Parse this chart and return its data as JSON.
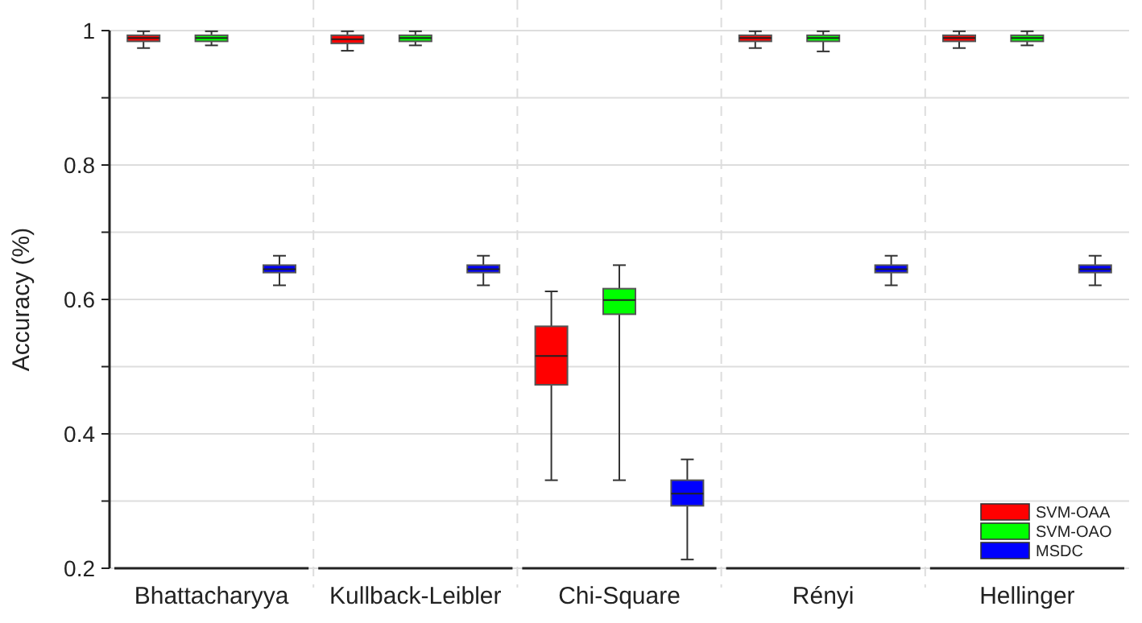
{
  "chart_data": {
    "type": "box",
    "ylabel": "Accuracy (%)",
    "categories": [
      "Bhattacharyya",
      "Kullback-Leibler",
      "Chi-Square",
      "Rényi",
      "Hellinger"
    ],
    "ylim": [
      0.2,
      1
    ],
    "yticks": [
      0.2,
      {
        "value": 0.3,
        "label": null
      },
      0.4,
      {
        "value": 0.5,
        "label": null
      },
      0.6,
      {
        "value": 0.7,
        "label": null
      },
      0.8,
      {
        "value": 0.9,
        "label": null
      },
      1
    ],
    "grid": "y",
    "legend": "bottom right",
    "series": [
      {
        "name": "SVM-OAA",
        "color": "#ff0000",
        "boxes": [
          {
            "low": 0.974,
            "q1": 0.984,
            "median": 0.989,
            "q3": 0.993,
            "high": 0.999
          },
          {
            "low": 0.97,
            "q1": 0.981,
            "median": 0.987,
            "q3": 0.993,
            "high": 0.999
          },
          {
            "low": 0.331,
            "q1": 0.473,
            "median": 0.516,
            "q3": 0.56,
            "high": 0.612
          },
          {
            "low": 0.974,
            "q1": 0.984,
            "median": 0.989,
            "q3": 0.993,
            "high": 0.999
          },
          {
            "low": 0.974,
            "q1": 0.984,
            "median": 0.989,
            "q3": 0.993,
            "high": 0.999
          }
        ]
      },
      {
        "name": "SVM-OAO",
        "color": "#00ff00",
        "boxes": [
          {
            "low": 0.978,
            "q1": 0.984,
            "median": 0.989,
            "q3": 0.993,
            "high": 0.999
          },
          {
            "low": 0.978,
            "q1": 0.984,
            "median": 0.989,
            "q3": 0.993,
            "high": 0.999
          },
          {
            "low": 0.331,
            "q1": 0.578,
            "median": 0.599,
            "q3": 0.616,
            "high": 0.651
          },
          {
            "low": 0.969,
            "q1": 0.984,
            "median": 0.989,
            "q3": 0.993,
            "high": 0.999
          },
          {
            "low": 0.978,
            "q1": 0.984,
            "median": 0.989,
            "q3": 0.993,
            "high": 0.999
          }
        ]
      },
      {
        "name": "MSDC",
        "color": "#0000ff",
        "boxes": [
          {
            "low": 0.621,
            "q1": 0.64,
            "median": 0.645,
            "q3": 0.651,
            "high": 0.665
          },
          {
            "low": 0.621,
            "q1": 0.64,
            "median": 0.645,
            "q3": 0.651,
            "high": 0.665
          },
          {
            "low": 0.213,
            "q1": 0.293,
            "median": 0.311,
            "q3": 0.331,
            "high": 0.362
          },
          {
            "low": 0.621,
            "q1": 0.64,
            "median": 0.645,
            "q3": 0.651,
            "high": 0.665
          },
          {
            "low": 0.621,
            "q1": 0.64,
            "median": 0.645,
            "q3": 0.651,
            "high": 0.665
          }
        ]
      }
    ]
  }
}
